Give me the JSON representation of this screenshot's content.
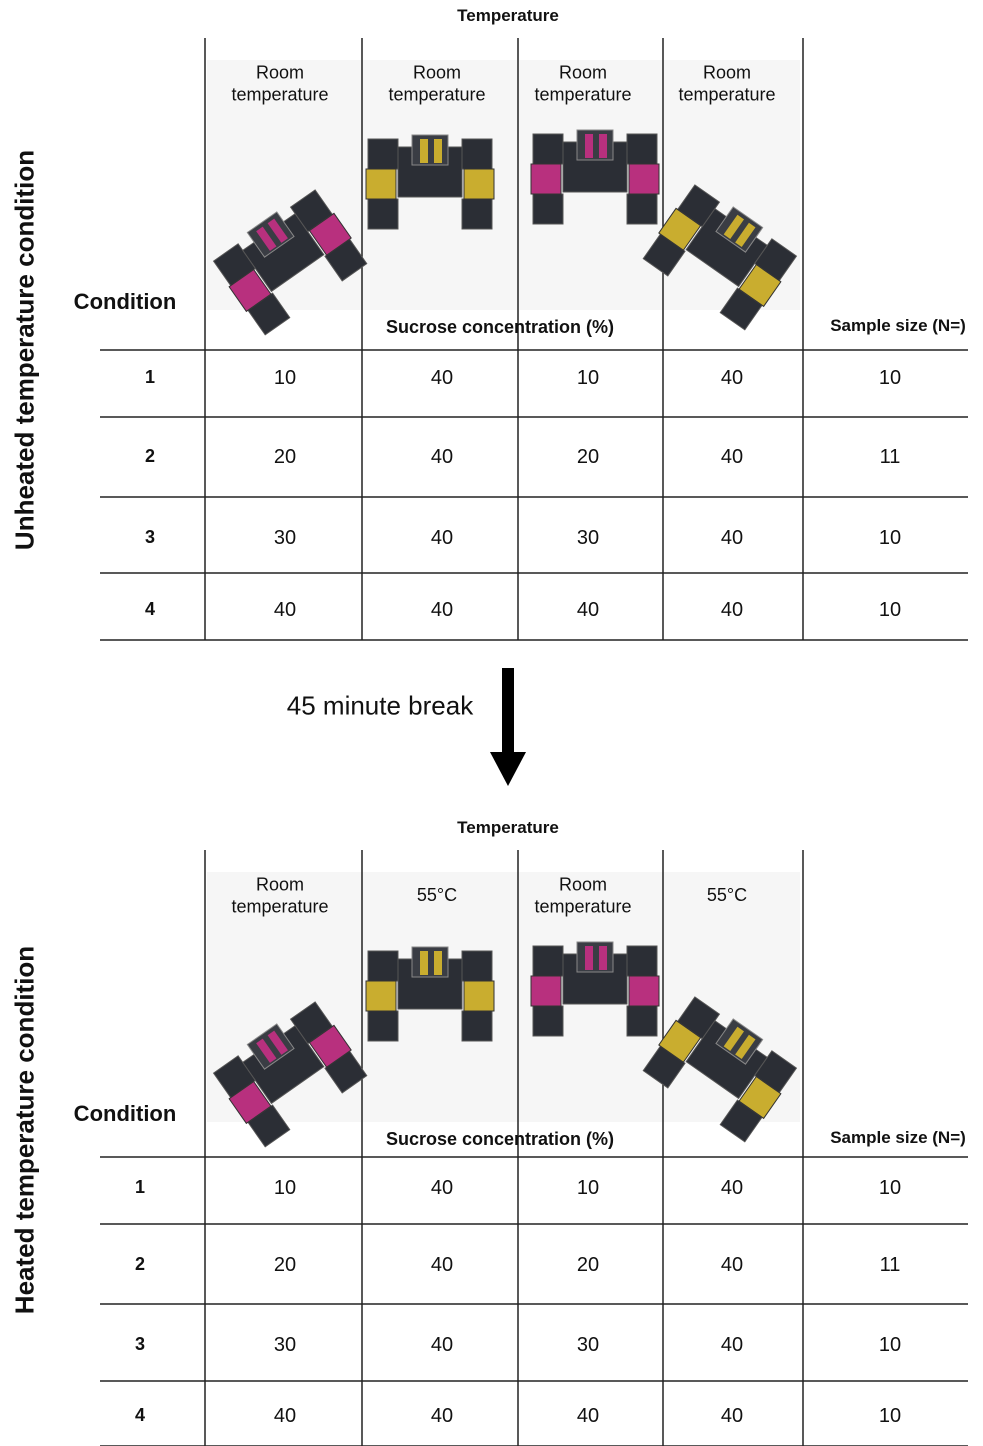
{
  "panels": [
    {
      "side_label": "Unheated temperature condition",
      "header": "Temperature",
      "columns": [
        "Room temperature",
        "Room temperature",
        "Room temperature",
        "Room temperature"
      ],
      "condition_label": "Condition",
      "sucrose_label": "Sucrose concentration (%)",
      "sample_label": "Sample size (N=)",
      "rows": [
        {
          "condition": 1,
          "values": [
            10,
            40,
            10,
            40
          ],
          "n": 10
        },
        {
          "condition": 2,
          "values": [
            20,
            40,
            20,
            40
          ],
          "n": 11
        },
        {
          "condition": 3,
          "values": [
            30,
            40,
            30,
            40
          ],
          "n": 10
        },
        {
          "condition": 4,
          "values": [
            40,
            40,
            40,
            40
          ],
          "n": 10
        }
      ]
    },
    {
      "side_label": "Heated temperature condition",
      "header": "Temperature",
      "columns": [
        "Room temperature",
        "55°C",
        "Room temperature",
        "55°C"
      ],
      "condition_label": "Condition",
      "sucrose_label": "Sucrose concentration (%)",
      "sample_label": "Sample size (N=)",
      "rows": [
        {
          "condition": 1,
          "values": [
            10,
            40,
            10,
            40
          ],
          "n": 10
        },
        {
          "condition": 2,
          "values": [
            20,
            40,
            20,
            40
          ],
          "n": 11
        },
        {
          "condition": 3,
          "values": [
            30,
            40,
            30,
            40
          ],
          "n": 10
        },
        {
          "condition": 4,
          "values": [
            40,
            40,
            40,
            40
          ],
          "n": 10
        }
      ]
    }
  ],
  "break_label": "45 minute break"
}
